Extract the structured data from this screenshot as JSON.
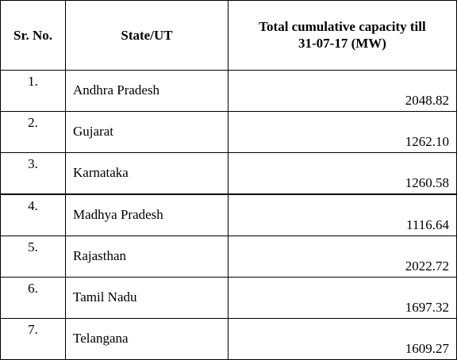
{
  "table": {
    "headers": {
      "sr_no": "Sr. No.",
      "state": "State/UT",
      "capacity_line1": "Total cumulative capacity till",
      "capacity_line2": "31-07-17 (MW)"
    },
    "rows": [
      {
        "sr": "1.",
        "state": "Andhra Pradesh",
        "capacity": "2048.82"
      },
      {
        "sr": "2.",
        "state": "Gujarat",
        "capacity": "1262.10"
      },
      {
        "sr": "3.",
        "state": "Karnataka",
        "capacity": "1260.58"
      },
      {
        "sr": "4.",
        "state": "Madhya Pradesh",
        "capacity": "1116.64"
      },
      {
        "sr": "5.",
        "state": "Rajasthan",
        "capacity": "2022.72"
      },
      {
        "sr": "6.",
        "state": "Tamil Nadu",
        "capacity": "1697.32"
      },
      {
        "sr": "7.",
        "state": "Telangana",
        "capacity": "1609.27"
      }
    ]
  }
}
